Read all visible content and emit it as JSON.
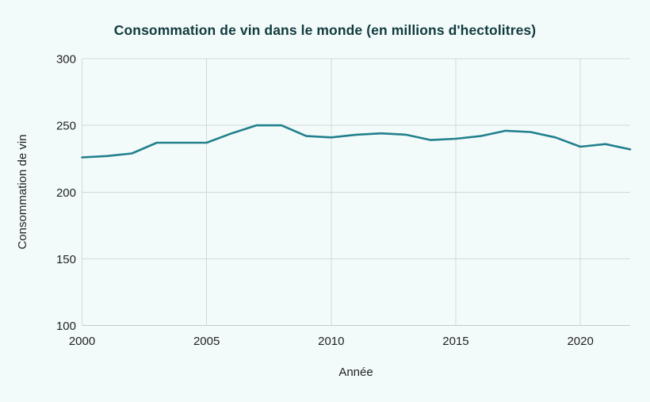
{
  "title": "Consommation de vin dans le monde (en millions d'hectolitres)",
  "colors": {
    "background": "#f3fbfa",
    "line": "#21808d",
    "title_text": "#113b3f",
    "axis_text": "#222222",
    "gridline": "#d4d8d7",
    "axis_line": "#c7cbca"
  },
  "chart_data": {
    "type": "line",
    "title": "Consommation de vin dans le monde (en millions d'hectolitres)",
    "xlabel": "Année",
    "ylabel": "Consommation de vin",
    "x": [
      2000,
      2001,
      2002,
      2003,
      2004,
      2005,
      2006,
      2007,
      2008,
      2009,
      2010,
      2011,
      2012,
      2013,
      2014,
      2015,
      2016,
      2017,
      2018,
      2019,
      2020,
      2021,
      2022
    ],
    "values": [
      226,
      227,
      229,
      237,
      237,
      237,
      244,
      250,
      250,
      242,
      241,
      243,
      244,
      243,
      239,
      240,
      242,
      246,
      245,
      241,
      234,
      236,
      232
    ],
    "xticks": [
      2000,
      2005,
      2010,
      2015,
      2020
    ],
    "yticks": [
      100,
      150,
      200,
      250,
      300
    ],
    "xlim": [
      2000,
      2022
    ],
    "ylim": [
      100,
      300
    ],
    "grid": true,
    "legend": false
  }
}
